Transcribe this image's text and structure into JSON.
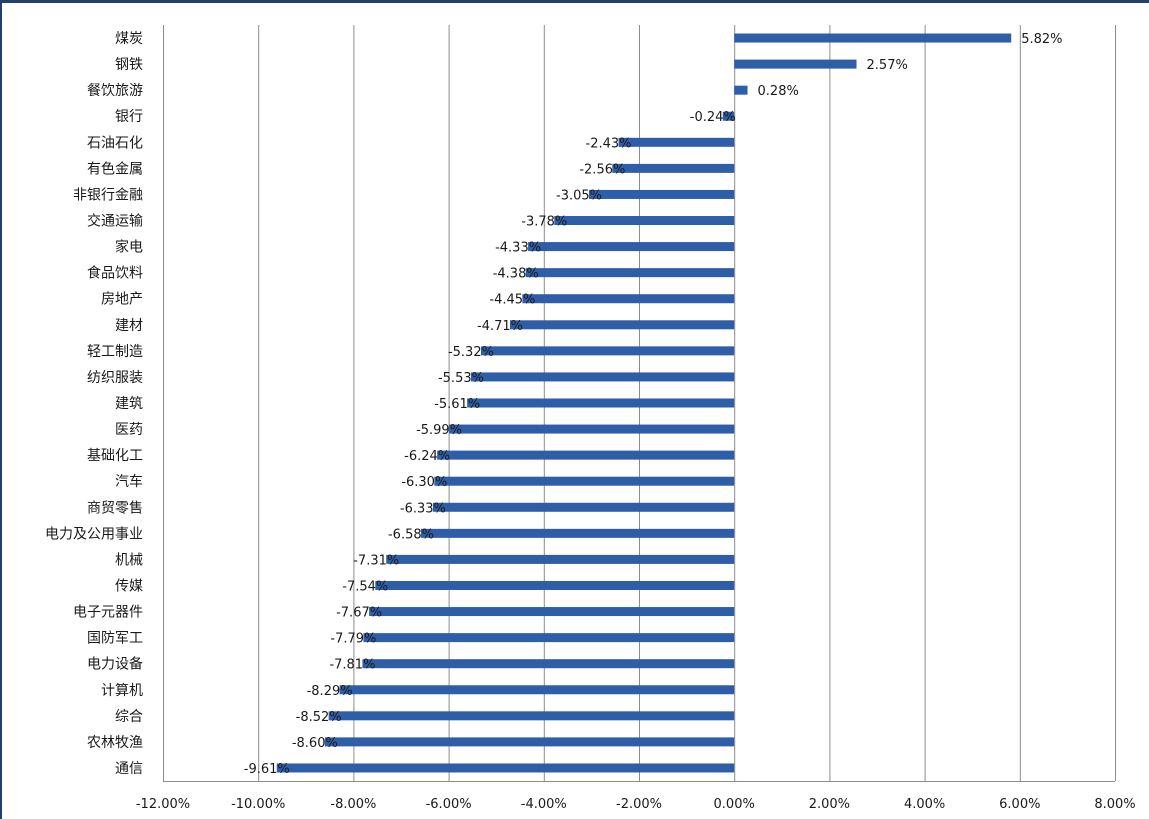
{
  "chart_data": {
    "type": "bar",
    "orientation": "horizontal",
    "categories": [
      "煤炭",
      "钢铁",
      "餐饮旅游",
      "银行",
      "石油石化",
      "有色金属",
      "非银行金融",
      "交通运输",
      "家电",
      "食品饮料",
      "房地产",
      "建材",
      "轻工制造",
      "纺织服装",
      "建筑",
      "医药",
      "基础化工",
      "汽车",
      "商贸零售",
      "电力及公用事业",
      "机械",
      "传媒",
      "电子元器件",
      "国防军工",
      "电力设备",
      "计算机",
      "综合",
      "农林牧渔",
      "通信"
    ],
    "values": [
      5.82,
      2.57,
      0.28,
      -0.24,
      -2.43,
      -2.56,
      -3.05,
      -3.78,
      -4.33,
      -4.38,
      -4.45,
      -4.71,
      -5.32,
      -5.53,
      -5.61,
      -5.99,
      -6.24,
      -6.3,
      -6.33,
      -6.58,
      -7.31,
      -7.54,
      -7.67,
      -7.79,
      -7.81,
      -8.29,
      -8.52,
      -8.6,
      -9.61
    ],
    "data_labels": [
      "5.82%",
      "2.57%",
      "0.28%",
      "-0.24%",
      "-2.43%",
      "-2.56%",
      "-3.05%",
      "-3.78%",
      "-4.33%",
      "-4.38%",
      "-4.45%",
      "-4.71%",
      "-5.32%",
      "-5.53%",
      "-5.61%",
      "-5.99%",
      "-6.24%",
      "-6.30%",
      "-6.33%",
      "-6.58%",
      "-7.31%",
      "-7.54%",
      "-7.67%",
      "-7.79%",
      "-7.81%",
      "-8.29%",
      "-8.52%",
      "-8.60%",
      "-9.61%"
    ],
    "xlim": [
      -12,
      8
    ],
    "xticks": [
      -12,
      -10,
      -8,
      -6,
      -4,
      -2,
      0,
      2,
      4,
      6,
      8
    ],
    "xtick_labels": [
      "-12.00%",
      "-10.00%",
      "-8.00%",
      "-6.00%",
      "-4.00%",
      "-2.00%",
      "0.00%",
      "2.00%",
      "4.00%",
      "6.00%",
      "8.00%"
    ],
    "grid": "vertical",
    "legend": "none",
    "bar_color": "#2e5ea8",
    "title": "",
    "xlabel": "",
    "ylabel": ""
  }
}
